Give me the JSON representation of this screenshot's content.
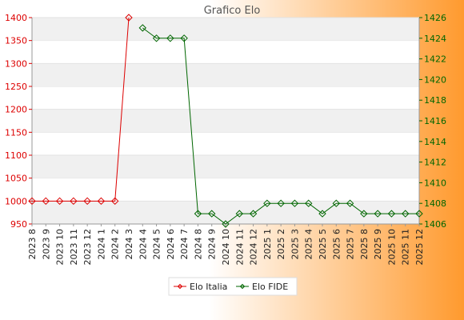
{
  "chart_data": {
    "type": "line",
    "title": "Grafico Elo",
    "categories": [
      "2023 8",
      "2023 9",
      "2023 10",
      "2023 11",
      "2023 12",
      "2024 1",
      "2024 2",
      "2024 3",
      "2024 4",
      "2024 5",
      "2024 6",
      "2024 7",
      "2024 8",
      "2024 9",
      "2024 10",
      "2024 11",
      "2024 12",
      "2025 1",
      "2025 2",
      "2025 3",
      "2025 4",
      "2025 5",
      "2025 6",
      "2025 7",
      "2025 8",
      "2025 9",
      "2025 10",
      "2025 11",
      "2025 12"
    ],
    "y_left": {
      "ylim": [
        950,
        1400
      ],
      "ticks": [
        "950",
        "1000",
        "1050",
        "1100",
        "1150",
        "1200",
        "1250",
        "1300",
        "1350",
        "1400"
      ]
    },
    "y_right": {
      "ylim": [
        1406,
        1426
      ],
      "ticks": [
        "1406",
        "1408",
        "1410",
        "1412",
        "1414",
        "1416",
        "1418",
        "1420",
        "1422",
        "1424",
        "1426"
      ]
    },
    "series": [
      {
        "name": "Elo Italia",
        "axis": "left",
        "color": "#dd0000",
        "values": [
          1000,
          1000,
          1000,
          1000,
          1000,
          1000,
          1000,
          1400,
          null,
          null,
          null,
          null,
          null,
          null,
          null,
          null,
          null,
          null,
          null,
          null,
          null,
          null,
          null,
          null,
          null,
          null,
          null,
          null,
          null
        ]
      },
      {
        "name": "Elo FIDE",
        "axis": "right",
        "color": "#006600",
        "values": [
          null,
          null,
          null,
          null,
          null,
          null,
          null,
          null,
          1425,
          1424,
          1424,
          1424,
          1407,
          1407,
          1406,
          1407,
          1407,
          1408,
          1408,
          1408,
          1408,
          1407,
          1408,
          1408,
          1407,
          1407,
          1407,
          1407,
          1407
        ]
      }
    ],
    "grid": "horizontal bands",
    "legend": "bottom-center"
  }
}
